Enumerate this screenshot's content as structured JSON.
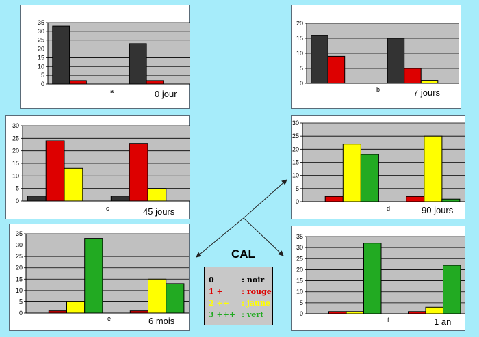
{
  "colors": {
    "noir": "#333333",
    "rouge": "#dd0000",
    "jaune": "#ffff00",
    "vert": "#22aa22",
    "plot_bg": "#c0c0c0",
    "page_bg": "#a6ecfa"
  },
  "center_label": "CAL",
  "legend": [
    {
      "key": "0",
      "text": ": noir",
      "color": "#000000"
    },
    {
      "key": "1 +",
      "text": ": rouge",
      "color": "#dd0000"
    },
    {
      "key": "2 ++",
      "text": ": jaune",
      "color": "#ffff00"
    },
    {
      "key": "3 +++",
      "text": ": vert",
      "color": "#22aa22"
    }
  ],
  "chart_data": [
    {
      "type": "bar",
      "panel_letter": "a",
      "title": "0 jour",
      "ylim": [
        0,
        35
      ],
      "yticks": [
        0,
        5,
        10,
        15,
        20,
        25,
        30,
        35
      ],
      "series": [
        {
          "name": "0",
          "values": [
            33,
            23
          ]
        },
        {
          "name": "1 +",
          "values": [
            2,
            2
          ]
        },
        {
          "name": "2 ++",
          "values": [
            0,
            0
          ]
        },
        {
          "name": "3 +++",
          "values": [
            0,
            0
          ]
        }
      ]
    },
    {
      "type": "bar",
      "panel_letter": "b",
      "title": "7 jours",
      "ylim": [
        0,
        20
      ],
      "yticks": [
        0,
        5,
        10,
        15,
        20
      ],
      "series": [
        {
          "name": "0",
          "values": [
            16,
            15
          ]
        },
        {
          "name": "1 +",
          "values": [
            9,
            5
          ]
        },
        {
          "name": "2 ++",
          "values": [
            0,
            1
          ]
        },
        {
          "name": "3 +++",
          "values": [
            0,
            0
          ]
        }
      ]
    },
    {
      "type": "bar",
      "panel_letter": "c",
      "title": "45 jours",
      "ylim": [
        0,
        30
      ],
      "yticks": [
        0,
        5,
        10,
        15,
        20,
        25,
        30
      ],
      "series": [
        {
          "name": "0",
          "values": [
            2,
            2
          ]
        },
        {
          "name": "1 +",
          "values": [
            24,
            23
          ]
        },
        {
          "name": "2 ++",
          "values": [
            13,
            5
          ]
        },
        {
          "name": "3 +++",
          "values": [
            0,
            0
          ]
        }
      ]
    },
    {
      "type": "bar",
      "panel_letter": "d",
      "title": "90 jours",
      "ylim": [
        0,
        30
      ],
      "yticks": [
        0,
        5,
        10,
        15,
        20,
        25,
        30
      ],
      "series": [
        {
          "name": "0",
          "values": [
            0,
            0
          ]
        },
        {
          "name": "1 +",
          "values": [
            2,
            2
          ]
        },
        {
          "name": "2 ++",
          "values": [
            22,
            25
          ]
        },
        {
          "name": "3 +++",
          "values": [
            18,
            1
          ]
        }
      ]
    },
    {
      "type": "bar",
      "panel_letter": "e",
      "title": "6 mois",
      "ylim": [
        0,
        35
      ],
      "yticks": [
        0,
        5,
        10,
        15,
        20,
        25,
        30,
        35
      ],
      "series": [
        {
          "name": "0",
          "values": [
            0,
            0
          ]
        },
        {
          "name": "1 +",
          "values": [
            1,
            1
          ]
        },
        {
          "name": "2 ++",
          "values": [
            5,
            15
          ]
        },
        {
          "name": "3 +++",
          "values": [
            33,
            13
          ]
        }
      ]
    },
    {
      "type": "bar",
      "panel_letter": "f",
      "title": "1 an",
      "ylim": [
        0,
        35
      ],
      "yticks": [
        0,
        5,
        10,
        15,
        20,
        25,
        30,
        35
      ],
      "series": [
        {
          "name": "0",
          "values": [
            0,
            0
          ]
        },
        {
          "name": "1 +",
          "values": [
            1,
            1
          ]
        },
        {
          "name": "2 ++",
          "values": [
            1,
            3
          ]
        },
        {
          "name": "3 +++",
          "values": [
            32,
            22
          ]
        }
      ]
    }
  ]
}
